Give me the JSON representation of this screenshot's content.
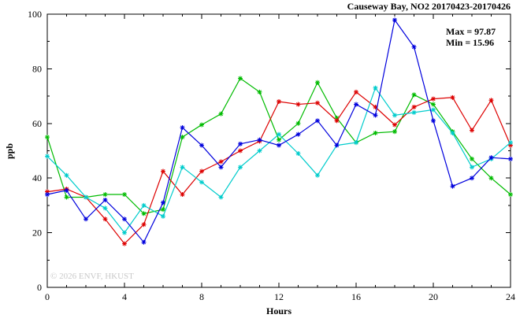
{
  "chart": {
    "title": "Causeway Bay, NO2 20170423-20170426",
    "stats": {
      "max_label": "Max = 97.87",
      "min_label": "Min = 15.96"
    },
    "ylabel": "ppb",
    "xlabel": "Hours",
    "watermark": "© 2026 ENVF, HKUST"
  },
  "chart_data": {
    "type": "line",
    "title": "Causeway Bay, NO2 20170423-20170426",
    "xlabel": "Hours",
    "ylabel": "ppb",
    "xlim": [
      0,
      24
    ],
    "ylim": [
      0,
      100
    ],
    "xticks": [
      0,
      4,
      8,
      12,
      16,
      20,
      24
    ],
    "yticks": [
      0,
      20,
      40,
      60,
      80,
      100
    ],
    "grid": false,
    "legend": "none",
    "marker": "asterisk",
    "annotations": [
      "Max = 97.87",
      "Min = 15.96"
    ],
    "x": [
      0,
      1,
      2,
      3,
      4,
      5,
      6,
      7,
      8,
      9,
      10,
      11,
      12,
      13,
      14,
      15,
      16,
      17,
      18,
      19,
      20,
      21,
      22,
      23,
      24
    ],
    "series": [
      {
        "name": "green-series",
        "color": "#00bb00",
        "values": [
          55,
          33,
          33,
          34,
          34,
          27,
          28.5,
          55,
          59.5,
          63.5,
          76.5,
          71.5,
          54,
          60,
          75,
          62,
          53,
          56.5,
          57,
          70.5,
          67,
          57,
          47,
          40,
          34
        ]
      },
      {
        "name": "red-series",
        "color": "#dd0000",
        "values": [
          35,
          36,
          33,
          25,
          15.96,
          23,
          42.5,
          34,
          42.5,
          46,
          50,
          53.5,
          68,
          67,
          67.5,
          61,
          71.5,
          66,
          59.5,
          66,
          69,
          69.5,
          57.5,
          68.5,
          52
        ]
      },
      {
        "name": "cyan-series",
        "color": "#00cccc",
        "values": [
          48,
          41,
          33,
          29,
          20,
          30,
          26,
          44,
          38.5,
          33,
          44,
          50,
          56,
          49,
          41,
          52,
          53,
          73,
          63,
          64,
          65,
          56.5,
          44,
          47,
          53
        ]
      },
      {
        "name": "blue-series",
        "color": "#0000dd",
        "values": [
          34,
          35.5,
          25,
          32,
          25,
          16.5,
          31,
          58.5,
          52,
          44,
          52.5,
          54,
          52,
          56,
          61,
          52,
          67,
          63,
          97.87,
          88,
          61,
          37,
          40,
          47.5,
          47
        ]
      }
    ]
  }
}
